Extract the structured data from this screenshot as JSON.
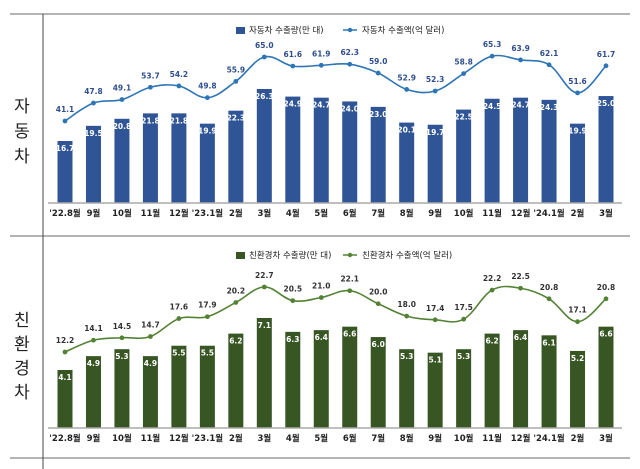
{
  "chart_data": [
    {
      "type": "bar+line",
      "row_label": "자동차",
      "categories": [
        "'22.8월",
        "9월",
        "10월",
        "11월",
        "12월",
        "'23.1월",
        "2월",
        "3월",
        "4월",
        "5월",
        "6월",
        "7월",
        "8월",
        "9월",
        "10월",
        "11월",
        "12월",
        "'24.1월",
        "2월",
        "3월"
      ],
      "series": [
        {
          "name": "자동차 수출량(만 대)",
          "type": "bar",
          "color": "#2f5597",
          "label_color": "#ffffff",
          "values": [
            16.7,
            19.5,
            20.8,
            21.8,
            21.8,
            19.9,
            22.3,
            26.3,
            24.9,
            24.7,
            24.0,
            23.0,
            20.1,
            19.7,
            22.5,
            24.5,
            24.7,
            24.3,
            19.9,
            25.0
          ]
        },
        {
          "name": "자동차 수출액(억 달러)",
          "type": "line",
          "color": "#2e75b6",
          "label_color": "#2f4f8f",
          "values": [
            41.1,
            47.8,
            49.1,
            53.7,
            54.2,
            49.8,
            55.9,
            65.0,
            61.6,
            61.9,
            62.3,
            59.0,
            52.9,
            52.3,
            58.8,
            65.3,
            63.9,
            62.1,
            51.6,
            61.7
          ]
        }
      ],
      "legend": "top-center",
      "grid": false
    },
    {
      "type": "bar+line",
      "row_label": "친환경차",
      "categories": [
        "'22.8월",
        "9월",
        "10월",
        "11월",
        "12월",
        "'23.1월",
        "2월",
        "3월",
        "4월",
        "5월",
        "6월",
        "7월",
        "8월",
        "9월",
        "10월",
        "11월",
        "12월",
        "'24.1월",
        "2월",
        "3월"
      ],
      "series": [
        {
          "name": "친환경차 수출량(만 대)",
          "type": "bar",
          "color": "#375623",
          "label_color": "#ffffff",
          "values": [
            4.1,
            4.9,
            5.3,
            4.9,
            5.5,
            5.5,
            6.2,
            7.1,
            6.3,
            6.4,
            6.6,
            6.0,
            5.3,
            5.1,
            5.3,
            6.2,
            6.4,
            6.1,
            5.2,
            6.6
          ]
        },
        {
          "name": "친환경차 수출액(억 달러)",
          "type": "line",
          "color": "#548235",
          "label_color": "#333333",
          "values": [
            12.2,
            14.1,
            14.5,
            14.7,
            17.6,
            17.9,
            20.2,
            22.7,
            20.5,
            21.0,
            22.1,
            20.0,
            18.0,
            17.4,
            17.5,
            22.2,
            22.5,
            20.8,
            17.1,
            20.8
          ]
        }
      ],
      "legend": "top-center",
      "grid": false
    }
  ]
}
